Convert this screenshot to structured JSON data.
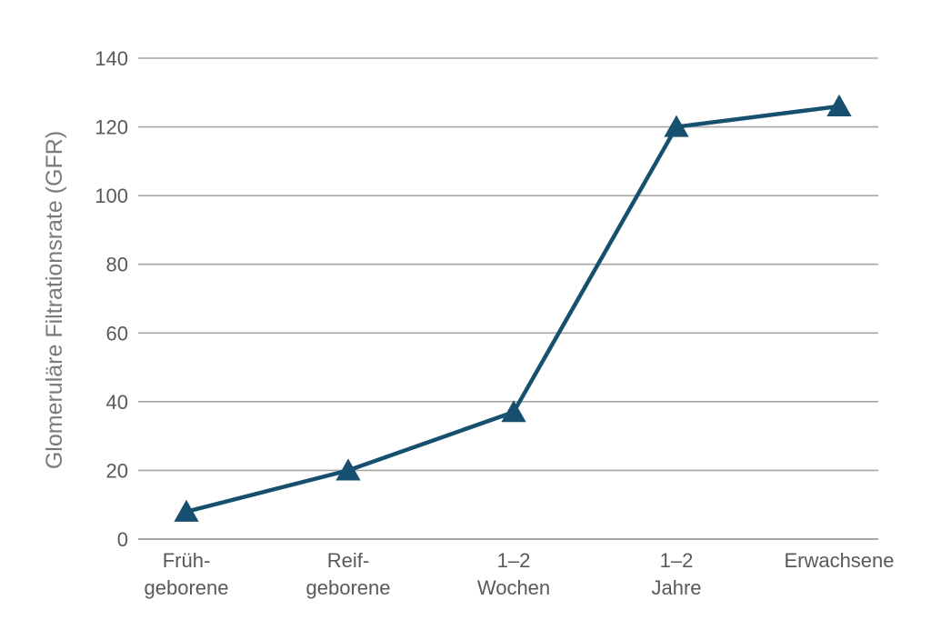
{
  "chart_data": {
    "type": "line",
    "categories": [
      "Früh-\ngeborene",
      "Reif-\ngeborene",
      "1–2\nWochen",
      "1–2\nJahre",
      "Erwachsene"
    ],
    "values": [
      8,
      20,
      37,
      120,
      126
    ],
    "title": "",
    "xlabel": "",
    "ylabel": "Glomeruläre Filtrationsrate (GFR)",
    "ylim": [
      0,
      140
    ],
    "yticks": [
      0,
      20,
      40,
      60,
      80,
      100,
      120,
      140
    ],
    "grid": true,
    "marker": "triangle"
  },
  "colors": {
    "series": "#16506e",
    "grid": "#a6a6a6",
    "text": "#58595b",
    "axis_title": "#7a7a7a"
  }
}
